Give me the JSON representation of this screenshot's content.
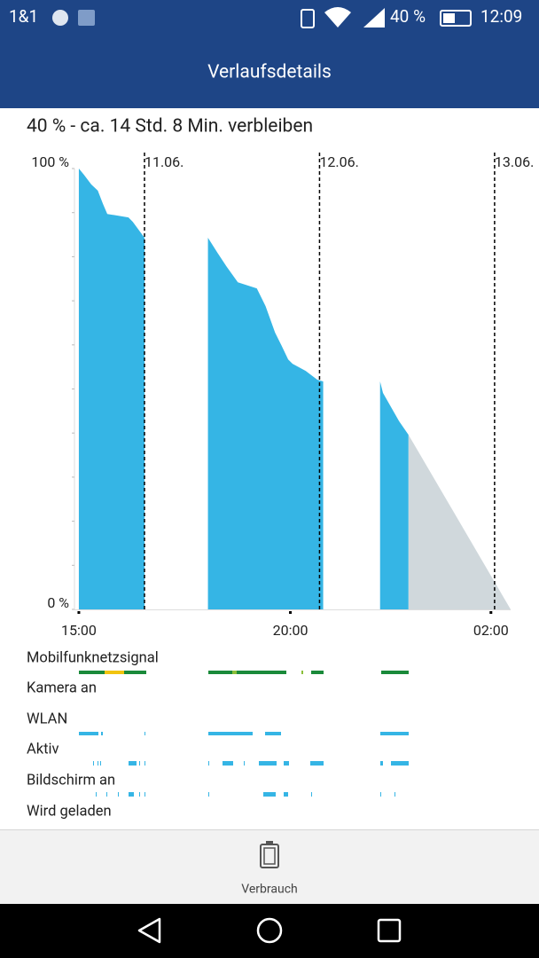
{
  "status_bar": {
    "carrier": "1&1",
    "battery": "40 %",
    "time": "12:09"
  },
  "header": {
    "title": "Verlaufsdetails"
  },
  "summary": "40 % - ca. 14 Std. 8 Min. verbleiben",
  "chart_data": {
    "type": "area",
    "series": [
      {
        "color": "#35b5e5",
        "x": [
          15.0,
          15.7,
          16.7,
          17.6,
          18.3,
          18.9,
          21.8,
          22.4,
          24.0,
          null,
          32.7,
          34.0,
          35.2,
          36.8,
          39.4,
          40.6,
          41.9,
          42.8,
          43.7,
          44.3,
          46.1,
          47.7,
          48.5,
          null,
          56.3,
          56.7,
          58.9,
          60.2
        ],
        "values": [
          100,
          98.6,
          96.4,
          95.0,
          92.0,
          89.7,
          88.9,
          87.9,
          84.3,
          null,
          84.3,
          80.9,
          77.9,
          74.2,
          72.8,
          68.8,
          62.8,
          59.8,
          56.7,
          55.7,
          54.1,
          52.1,
          51.7,
          null,
          51.7,
          49.1,
          42.7,
          39.6
        ]
      },
      {
        "color": "#d0d8dc",
        "x": [
          60.2,
          74.2
        ],
        "values": [
          39.6,
          0
        ]
      }
    ],
    "xlim": [
      14.4,
      74.2
    ],
    "ylim": [
      0,
      100
    ],
    "xticks": [
      {
        "value": 15,
        "label": "15:00"
      },
      {
        "value": 44,
        "label": "20:00"
      },
      {
        "value": 71.5,
        "label": "02:00"
      }
    ],
    "yticks": [
      {
        "value": 0,
        "label": "0 %"
      },
      {
        "value": 100,
        "label": "100 %"
      }
    ],
    "date_lines": [
      {
        "value": 24,
        "label": "11.06."
      },
      {
        "value": 48,
        "label": "12.06."
      },
      {
        "value": 72,
        "label": "13.06."
      }
    ]
  },
  "activity_rows": [
    "Mobilfunknetzsignal",
    "Kamera an",
    "WLAN",
    "Aktiv",
    "Bildschirm an",
    "Wird geladen"
  ],
  "bottom_tab": {
    "label": "Verbrauch"
  }
}
